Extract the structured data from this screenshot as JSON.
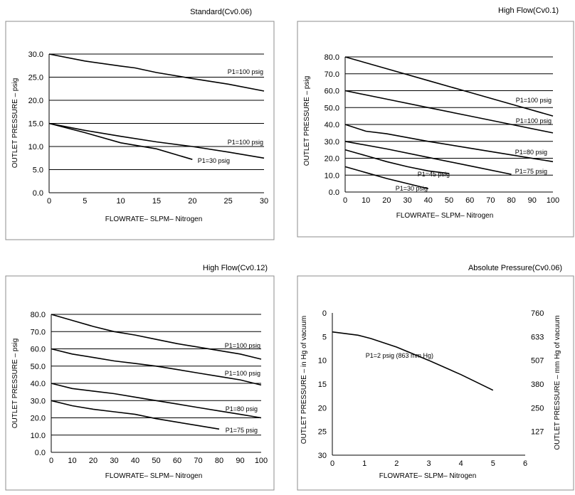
{
  "chart_data": [
    {
      "type": "line",
      "title": "Standard(Cv0.06)",
      "xlabel": "FLOWRATE– SLPM– Nitrogen",
      "ylabel": "OUTLET PRESSURE – psig",
      "xlim": [
        0,
        30
      ],
      "ylim": [
        0,
        30
      ],
      "xticks": [
        "0",
        "5",
        "10",
        "15",
        "20",
        "25",
        "30"
      ],
      "yticks": [
        "0.0",
        "5.0",
        "10.0",
        "15.0",
        "20.0",
        "25.0",
        "30.0"
      ],
      "grid": "horizontal",
      "series": [
        {
          "name": "P1=100 psig",
          "x": [
            0,
            5,
            10,
            12,
            15,
            20,
            25,
            30
          ],
          "y": [
            30,
            28.5,
            27.4,
            27,
            26,
            24.7,
            23.5,
            22
          ]
        },
        {
          "name": "P1=100 psig",
          "x": [
            0,
            5,
            10,
            15,
            20,
            25,
            30
          ],
          "y": [
            15,
            13.5,
            12.2,
            11,
            10,
            8.8,
            7.5
          ]
        },
        {
          "name": "P1=30 psig",
          "x": [
            0,
            5,
            10,
            15,
            20
          ],
          "y": [
            15,
            13,
            10.8,
            9.5,
            7.2
          ]
        }
      ]
    },
    {
      "type": "line",
      "title": "High Flow(Cv0.1)",
      "xlabel": "FLOWRATE– SLPM– Nitrogen",
      "ylabel": "OUTLET PRESSURE – psig",
      "xlim": [
        0,
        100
      ],
      "ylim": [
        0,
        80
      ],
      "xticks": [
        "0",
        "10",
        "20",
        "30",
        "40",
        "50",
        "60",
        "70",
        "80",
        "90",
        "100"
      ],
      "yticks": [
        "0.0",
        "10.0",
        "20.0",
        "30.0",
        "40.0",
        "50.0",
        "60.0",
        "70.0",
        "80.0"
      ],
      "grid": "horizontal",
      "series": [
        {
          "name": "P1=100 psig",
          "x": [
            0,
            20,
            40,
            60,
            80,
            100
          ],
          "y": [
            80,
            73,
            66,
            59,
            52,
            45
          ]
        },
        {
          "name": "P1=100 psig",
          "x": [
            0,
            20,
            40,
            60,
            80,
            100
          ],
          "y": [
            60,
            55,
            50,
            45,
            40,
            35
          ]
        },
        {
          "name": "P1=80 psig",
          "x": [
            0,
            10,
            20,
            40,
            60,
            80,
            100
          ],
          "y": [
            40,
            36,
            34.5,
            30,
            26,
            22,
            18
          ]
        },
        {
          "name": "P1=75 psig",
          "x": [
            0,
            20,
            40,
            60,
            80
          ],
          "y": [
            30,
            25.5,
            20.5,
            15.5,
            10.5
          ]
        },
        {
          "name": "P1=45 psig",
          "x": [
            0,
            10,
            20,
            30,
            40,
            50
          ],
          "y": [
            25,
            21.5,
            18,
            15,
            12.5,
            11
          ]
        },
        {
          "name": "P1=30 psig",
          "x": [
            0,
            10,
            20,
            30,
            40
          ],
          "y": [
            15,
            11.5,
            8,
            5,
            2
          ]
        }
      ]
    },
    {
      "type": "line",
      "title": "High Flow(Cv0.12)",
      "xlabel": "FLOWRATE– SLPM– Nitrogen",
      "ylabel": "OUTLET PRESSURE – psig",
      "xlim": [
        0,
        100
      ],
      "ylim": [
        0,
        80
      ],
      "xticks": [
        "0",
        "10",
        "20",
        "30",
        "40",
        "50",
        "60",
        "70",
        "80",
        "90",
        "100"
      ],
      "yticks": [
        "0.0",
        "10.0",
        "20.0",
        "30.0",
        "40.0",
        "50.0",
        "60.0",
        "70.0",
        "80.0"
      ],
      "grid": "horizontal",
      "series": [
        {
          "name": "P1=100 psig",
          "x": [
            0,
            10,
            20,
            30,
            40,
            50,
            60,
            70,
            80,
            90,
            100
          ],
          "y": [
            80,
            76.5,
            73,
            70,
            68,
            65.5,
            63,
            61,
            59,
            57,
            54
          ]
        },
        {
          "name": "P1=100 psig",
          "x": [
            0,
            10,
            20,
            30,
            40,
            50,
            60,
            70,
            80,
            90,
            100
          ],
          "y": [
            60,
            57,
            55,
            53,
            51.5,
            50,
            48,
            46,
            44,
            42,
            39
          ]
        },
        {
          "name": "P1=80 psig",
          "x": [
            0,
            10,
            20,
            30,
            40,
            50,
            60,
            70,
            80,
            90,
            100
          ],
          "y": [
            40,
            37,
            35.5,
            34,
            32,
            30,
            28,
            26,
            24,
            22,
            20
          ]
        },
        {
          "name": "P1=75 psig",
          "x": [
            0,
            10,
            20,
            30,
            40,
            50,
            60,
            70,
            80
          ],
          "y": [
            30,
            27,
            25,
            23.5,
            22,
            19.5,
            17.5,
            15.5,
            13.5
          ]
        }
      ]
    },
    {
      "type": "line",
      "title": "Absolute Pressure(Cv0.06)",
      "xlabel": "FLOWRATE– SLPM– Nitrogen",
      "ylabel": "OUTLET PRESSURE – in Hg of vacuum",
      "ylabel_right": "OUTLET PRESSURE – mm Hg of vacuum",
      "xlim": [
        0,
        6
      ],
      "ylim": [
        30,
        0
      ],
      "xticks": [
        "0",
        "1",
        "2",
        "3",
        "4",
        "5",
        "6"
      ],
      "yticks": [
        "0",
        "5",
        "10",
        "15",
        "20",
        "25",
        "30"
      ],
      "yticks_right": [
        "760",
        "633",
        "507",
        "380",
        "250",
        "127"
      ],
      "grid": "none",
      "series": [
        {
          "name": "P1=2 psig (863 mm Hg)",
          "x": [
            0,
            0.8,
            1.2,
            2,
            3,
            4,
            5
          ],
          "y": [
            4,
            4.7,
            5.4,
            7.2,
            10,
            13,
            16.3
          ]
        }
      ]
    }
  ]
}
